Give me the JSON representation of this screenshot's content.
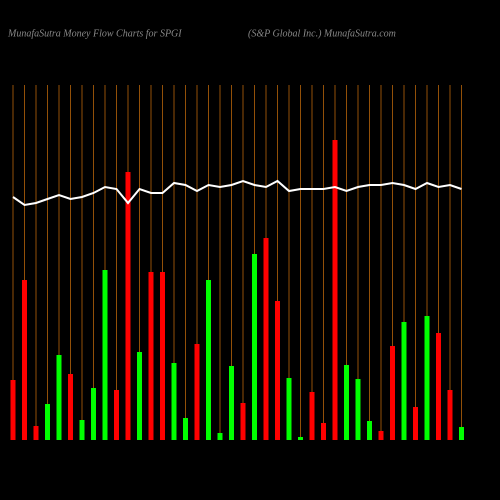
{
  "chart_data": {
    "type": "bar",
    "title": "MunafaSutra  Money Flow  Charts for SPGI",
    "subtitle": "(S&P Global Inc.) MunafaSutra.com",
    "values": [
      60,
      160,
      14,
      36,
      85,
      66,
      20,
      52,
      170,
      50,
      268,
      88,
      168,
      168,
      77,
      22,
      96,
      160,
      7,
      74,
      37,
      186,
      202,
      139,
      62,
      3,
      48,
      17,
      300,
      75,
      61,
      19,
      9,
      94,
      118,
      33,
      124,
      107,
      50,
      13
    ],
    "colors": [
      "#ff0000",
      "#ff0000",
      "#ff0000",
      "#00ff00",
      "#00ff00",
      "#ff0000",
      "#00ff00",
      "#00ff00",
      "#00ff00",
      "#ff0000",
      "#ff0000",
      "#00ff00",
      "#ff0000",
      "#ff0000",
      "#00ff00",
      "#00ff00",
      "#ff0000",
      "#00ff00",
      "#00ff00",
      "#00ff00",
      "#ff0000",
      "#00ff00",
      "#ff0000",
      "#ff0000",
      "#00ff00",
      "#00ff00",
      "#ff0000",
      "#ff0000",
      "#ff0000",
      "#00ff00",
      "#00ff00",
      "#00ff00",
      "#ff0000",
      "#ff0000",
      "#00ff00",
      "#ff0000",
      "#00ff00",
      "#ff0000",
      "#ff0000",
      "#00ff00"
    ],
    "line_values": [
      243,
      235,
      237,
      241,
      245,
      241,
      243,
      247,
      253,
      251,
      237,
      251,
      247,
      247,
      257,
      255,
      249,
      255,
      253,
      255,
      259,
      255,
      253,
      259,
      249,
      251,
      251,
      251,
      253,
      249,
      253,
      255,
      255,
      257,
      255,
      251,
      257,
      253,
      255,
      251
    ],
    "line_color": "#ffffff",
    "ylim": [
      0,
      310
    ],
    "grid": true,
    "grid_color": "#b8650a"
  }
}
